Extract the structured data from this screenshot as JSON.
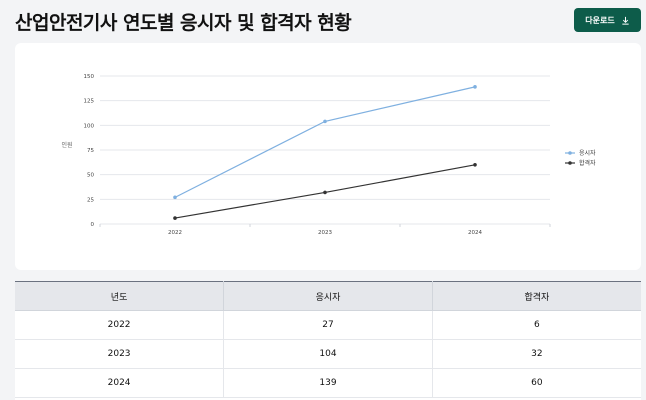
{
  "header": {
    "title": "산업안전기사 연도별 응시자 및 합격자 현황",
    "download_label": "다운로드"
  },
  "chart_data": {
    "type": "line",
    "ylabel": "인원",
    "ylim": [
      0,
      150
    ],
    "yticks": [
      0,
      25,
      50,
      75,
      100,
      125,
      150
    ],
    "x": [
      "2022",
      "2023",
      "2024"
    ],
    "grid": true,
    "legend_position": "right",
    "series": [
      {
        "name": "응시자",
        "color": "#7fb0e0",
        "values": [
          27,
          104,
          139
        ]
      },
      {
        "name": "합격자",
        "color": "#333333",
        "values": [
          6,
          32,
          60
        ]
      }
    ]
  },
  "table": {
    "headers": [
      "년도",
      "응시자",
      "합격자"
    ],
    "rows": [
      [
        "2022",
        "27",
        "6"
      ],
      [
        "2023",
        "104",
        "32"
      ],
      [
        "2024",
        "139",
        "60"
      ]
    ]
  }
}
